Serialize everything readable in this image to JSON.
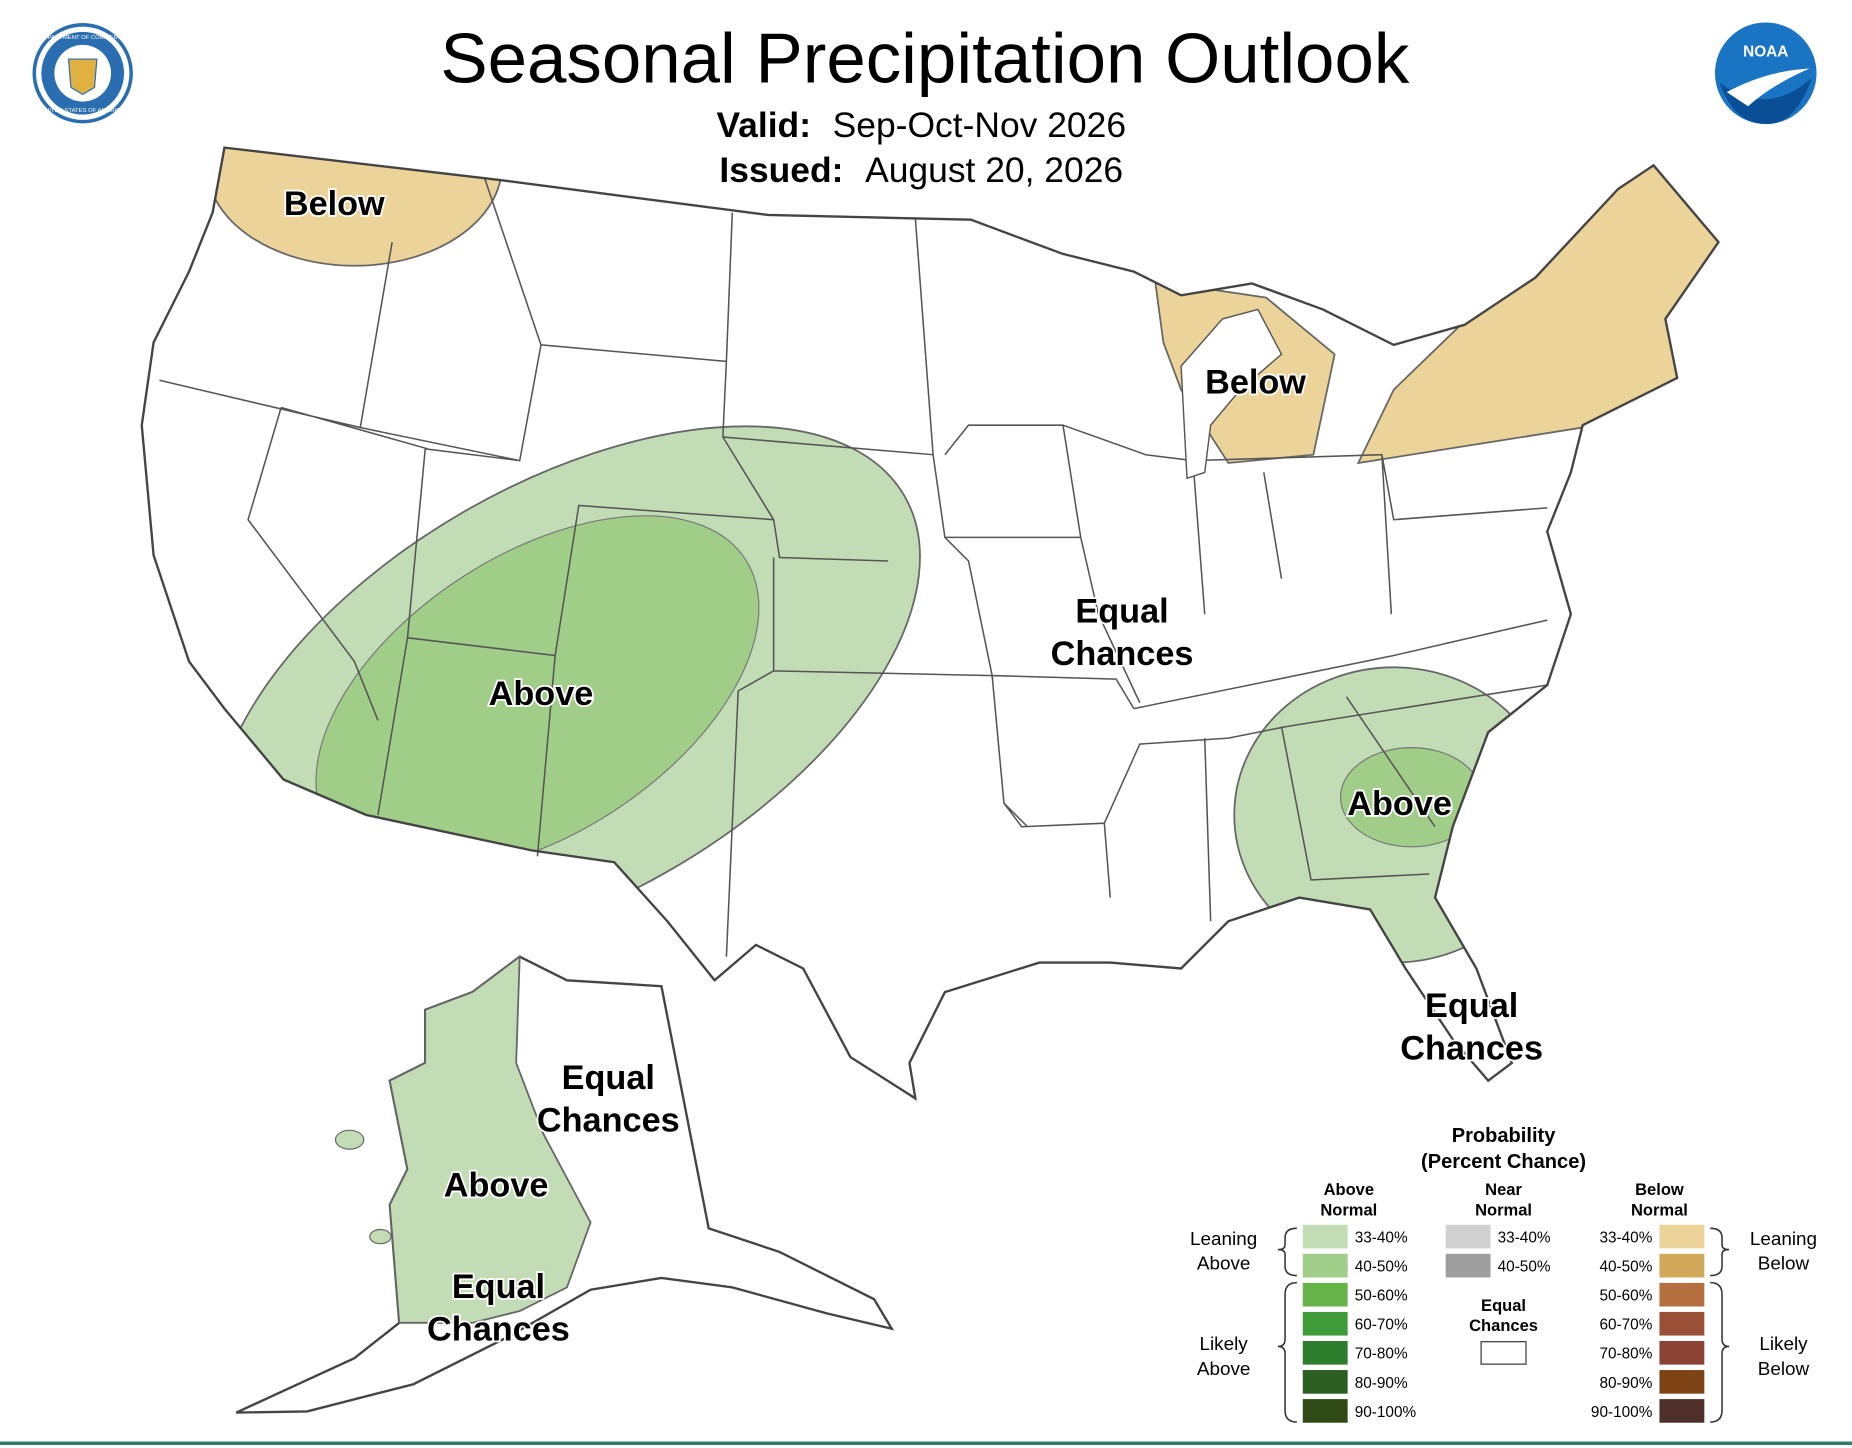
{
  "header": {
    "title": "Seasonal Precipitation Outlook",
    "valid_label": "Valid:",
    "valid": "Sep-Oct-Nov 2026",
    "issued_label": "Issued:",
    "issued": "August 20, 2026",
    "seal_text": [
      "DEPARTMENT OF COMMERCE",
      "UNITED STATES OF AMERICA"
    ],
    "noaa_logo": "NOAA"
  },
  "map_labels": [
    {
      "lines": [
        "Below"
      ]
    },
    {
      "lines": [
        "Below"
      ]
    },
    {
      "lines": [
        "Above"
      ]
    },
    {
      "lines": [
        "Equal",
        "Chances"
      ]
    },
    {
      "lines": [
        "Above"
      ]
    },
    {
      "lines": [
        "Equal",
        "Chances"
      ]
    },
    {
      "lines": [
        "Equal",
        "Chances"
      ]
    },
    {
      "lines": [
        "Above"
      ]
    },
    {
      "lines": [
        "Equal",
        "Chances"
      ]
    }
  ],
  "legend": {
    "title": [
      "Probability",
      "(Percent Chance)"
    ],
    "columns": [
      {
        "header": [
          "Above",
          "Normal"
        ],
        "items": [
          {
            "label": "33-40%",
            "color": "#c2ddb5"
          },
          {
            "label": "40-50%",
            "color": "#a0cd88"
          },
          {
            "label": "50-60%",
            "color": "#66b449"
          },
          {
            "label": "60-70%",
            "color": "#3f9a3a"
          },
          {
            "label": "70-80%",
            "color": "#2e7d2c"
          },
          {
            "label": "80-90%",
            "color": "#2c5e22"
          },
          {
            "label": "90-100%",
            "color": "#2f4a15"
          }
        ]
      },
      {
        "header": [
          "Near",
          "Normal"
        ],
        "items": [
          {
            "label": "33-40%",
            "color": "#d0d0d0"
          },
          {
            "label": "40-50%",
            "color": "#9e9e9e"
          }
        ]
      },
      {
        "header": [
          "Below",
          "Normal"
        ],
        "items": [
          {
            "label": "33-40%",
            "color": "#ecd39a"
          },
          {
            "label": "40-50%",
            "color": "#d2a95a"
          },
          {
            "label": "50-60%",
            "color": "#b36f3e"
          },
          {
            "label": "60-70%",
            "color": "#9a5036"
          },
          {
            "label": "70-80%",
            "color": "#8a4234"
          },
          {
            "label": "80-90%",
            "color": "#7e4314"
          },
          {
            "label": "90-100%",
            "color": "#4e2f29"
          }
        ]
      }
    ],
    "equal_chances": {
      "lines": [
        "Equal",
        "Chances"
      ],
      "color": "#ffffff"
    },
    "groups": [
      {
        "lines": [
          "Leaning",
          "Above"
        ]
      },
      {
        "lines": [
          "Likely",
          "Above"
        ]
      },
      {
        "lines": [
          "Leaning",
          "Below"
        ]
      },
      {
        "lines": [
          "Likely",
          "Below"
        ]
      }
    ]
  }
}
